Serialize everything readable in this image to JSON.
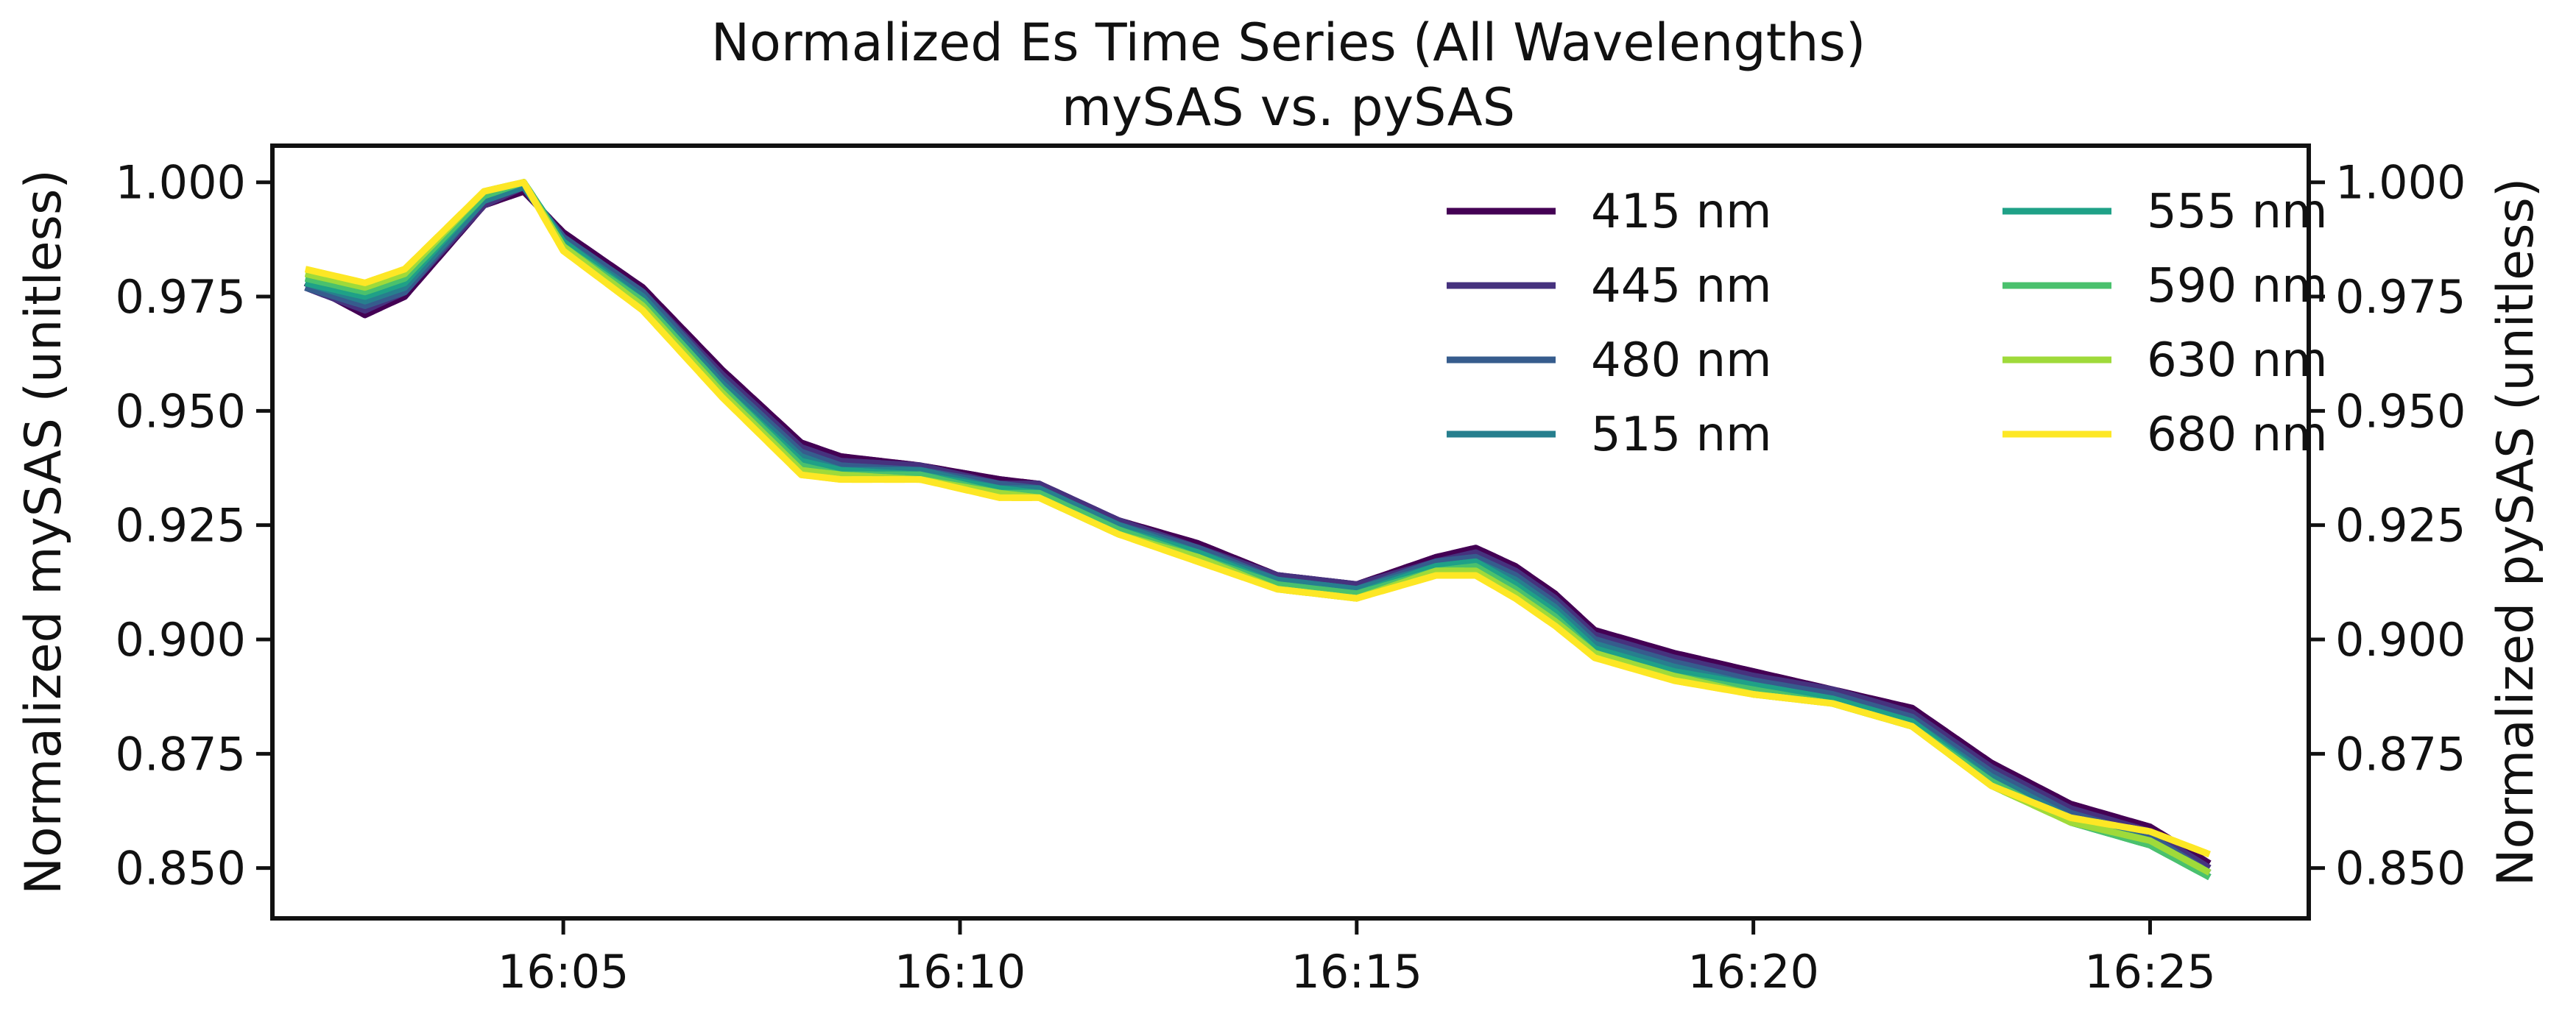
{
  "chart_data": {
    "type": "line",
    "title": "Normalized Es Time Series (All Wavelengths)",
    "subtitle": "mySAS vs. pySAS",
    "xlabel": "",
    "ylabel_left": "Normalized mySAS (unitless)",
    "ylabel_right": "Normalized pySAS (unitless)",
    "x_ticks": [
      "16:05",
      "16:10",
      "16:15",
      "16:20",
      "16:25"
    ],
    "y_ticks": [
      "0.850",
      "0.875",
      "0.900",
      "0.925",
      "0.950",
      "0.975",
      "1.000"
    ],
    "xlim": [
      "16:01:20",
      "16:27:00"
    ],
    "ylim": [
      0.839,
      1.008
    ],
    "grid": false,
    "legend_position": "top-right",
    "legend_columns": 2,
    "x": [
      "16:01:45",
      "16:02:30",
      "16:03:00",
      "16:04:00",
      "16:04:30",
      "16:05:00",
      "16:06:00",
      "16:07:00",
      "16:08:00",
      "16:08:30",
      "16:09:30",
      "16:10:30",
      "16:11:00",
      "16:12:00",
      "16:13:00",
      "16:14:00",
      "16:15:00",
      "16:16:00",
      "16:16:30",
      "16:17:00",
      "16:17:30",
      "16:18:00",
      "16:19:00",
      "16:20:00",
      "16:21:00",
      "16:22:00",
      "16:23:00",
      "16:24:00",
      "16:25:00",
      "16:25:45"
    ],
    "series": [
      {
        "name": "415 nm",
        "color": "#440154",
        "values": [
          0.978,
          0.971,
          0.975,
          0.995,
          0.998,
          0.989,
          0.977,
          0.959,
          0.943,
          0.94,
          0.938,
          0.935,
          0.934,
          0.926,
          0.921,
          0.914,
          0.912,
          0.918,
          0.92,
          0.916,
          0.91,
          0.902,
          0.897,
          0.893,
          0.889,
          0.885,
          0.873,
          0.864,
          0.859,
          0.851
        ]
      },
      {
        "name": "445 nm",
        "color": "#46327e",
        "values": [
          0.977,
          0.972,
          0.976,
          0.995,
          0.999,
          0.988,
          0.976,
          0.958,
          0.942,
          0.939,
          0.938,
          0.934,
          0.934,
          0.926,
          0.92,
          0.914,
          0.912,
          0.917,
          0.919,
          0.915,
          0.909,
          0.901,
          0.896,
          0.892,
          0.889,
          0.884,
          0.872,
          0.863,
          0.858,
          0.85
        ]
      },
      {
        "name": "480 nm",
        "color": "#365c8d",
        "values": [
          0.977,
          0.973,
          0.976,
          0.996,
          0.999,
          0.988,
          0.976,
          0.957,
          0.941,
          0.938,
          0.937,
          0.934,
          0.933,
          0.925,
          0.92,
          0.913,
          0.911,
          0.917,
          0.918,
          0.914,
          0.908,
          0.9,
          0.895,
          0.891,
          0.888,
          0.883,
          0.871,
          0.862,
          0.857,
          0.849
        ]
      },
      {
        "name": "515 nm",
        "color": "#277f8e",
        "values": [
          0.978,
          0.974,
          0.977,
          0.996,
          0.999,
          0.987,
          0.975,
          0.956,
          0.94,
          0.937,
          0.937,
          0.933,
          0.933,
          0.925,
          0.919,
          0.913,
          0.911,
          0.916,
          0.917,
          0.913,
          0.907,
          0.899,
          0.894,
          0.89,
          0.887,
          0.882,
          0.87,
          0.861,
          0.856,
          0.848
        ]
      },
      {
        "name": "555 nm",
        "color": "#1fa187",
        "values": [
          0.978,
          0.975,
          0.978,
          0.997,
          1.0,
          0.987,
          0.974,
          0.955,
          0.939,
          0.937,
          0.936,
          0.933,
          0.932,
          0.924,
          0.919,
          0.912,
          0.91,
          0.916,
          0.917,
          0.912,
          0.906,
          0.898,
          0.893,
          0.89,
          0.887,
          0.882,
          0.869,
          0.86,
          0.855,
          0.848
        ]
      },
      {
        "name": "590 nm",
        "color": "#4ac16d",
        "values": [
          0.979,
          0.976,
          0.979,
          0.997,
          1.0,
          0.986,
          0.974,
          0.955,
          0.938,
          0.936,
          0.936,
          0.932,
          0.932,
          0.924,
          0.918,
          0.912,
          0.91,
          0.915,
          0.916,
          0.911,
          0.905,
          0.897,
          0.892,
          0.889,
          0.886,
          0.881,
          0.869,
          0.86,
          0.855,
          0.848
        ]
      },
      {
        "name": "630 nm",
        "color": "#9fda3a",
        "values": [
          0.98,
          0.977,
          0.98,
          0.998,
          1.0,
          0.986,
          0.973,
          0.954,
          0.937,
          0.936,
          0.935,
          0.932,
          0.931,
          0.923,
          0.918,
          0.911,
          0.909,
          0.915,
          0.915,
          0.91,
          0.904,
          0.897,
          0.892,
          0.888,
          0.886,
          0.881,
          0.868,
          0.86,
          0.856,
          0.849
        ]
      },
      {
        "name": "680 nm",
        "color": "#fde725",
        "values": [
          0.981,
          0.978,
          0.981,
          0.998,
          1.0,
          0.985,
          0.972,
          0.953,
          0.936,
          0.935,
          0.935,
          0.931,
          0.931,
          0.923,
          0.917,
          0.911,
          0.909,
          0.914,
          0.914,
          0.909,
          0.903,
          0.896,
          0.891,
          0.888,
          0.886,
          0.881,
          0.868,
          0.861,
          0.858,
          0.853
        ]
      }
    ]
  }
}
